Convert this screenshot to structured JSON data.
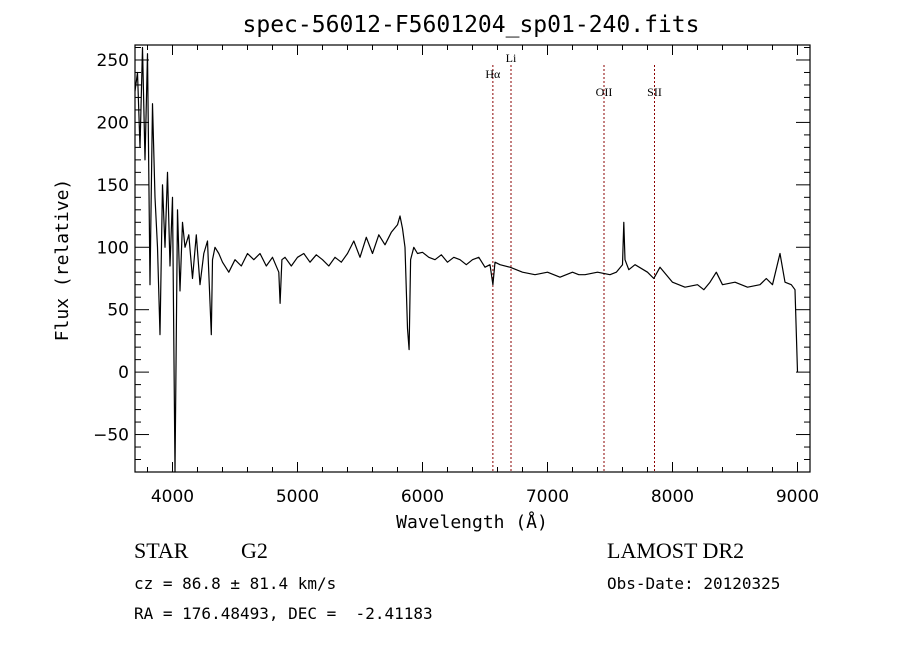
{
  "chart_data": {
    "type": "line",
    "title": "spec-56012-F5601204_sp01-240.fits",
    "xlabel": "Wavelength (Å)",
    "ylabel": "Flux (relative)",
    "xlim": [
      3700,
      9100
    ],
    "ylim": [
      -80,
      262
    ],
    "xticks": [
      4000,
      5000,
      6000,
      7000,
      8000,
      9000
    ],
    "yticks": [
      -50,
      0,
      50,
      100,
      150,
      200,
      250
    ],
    "grid": false,
    "line_color": "#000000",
    "marker_color": "#8b0000",
    "lines": [
      {
        "label": "Hα",
        "wavelength": 6563
      },
      {
        "label": "Li",
        "wavelength": 6708
      },
      {
        "label": "OII",
        "wavelength": 7452
      },
      {
        "label": "SII",
        "wavelength": 7856
      }
    ],
    "series": [
      {
        "x": [
          3700,
          3720,
          3740,
          3760,
          3780,
          3800,
          3820,
          3840,
          3860,
          3880,
          3900,
          3920,
          3940,
          3960,
          3980,
          4000,
          4020,
          4040,
          4060,
          4080,
          4100,
          4130,
          4160,
          4190,
          4220,
          4250,
          4280,
          4310,
          4320,
          4340,
          4370,
          4400,
          4450,
          4500,
          4550,
          4600,
          4650,
          4700,
          4750,
          4800,
          4850,
          4861,
          4875,
          4900,
          4950,
          5000,
          5050,
          5100,
          5150,
          5200,
          5250,
          5300,
          5350,
          5400,
          5450,
          5500,
          5550,
          5600,
          5650,
          5700,
          5750,
          5800,
          5820,
          5840,
          5860,
          5880,
          5893,
          5905,
          5930,
          5960,
          6000,
          6050,
          6100,
          6150,
          6200,
          6250,
          6300,
          6350,
          6400,
          6450,
          6500,
          6540,
          6563,
          6580,
          6620,
          6700,
          6800,
          6900,
          7000,
          7100,
          7200,
          7250,
          7300,
          7400,
          7500,
          7550,
          7600,
          7610,
          7620,
          7650,
          7700,
          7800,
          7850,
          7900,
          8000,
          8100,
          8200,
          8250,
          8300,
          8350,
          8400,
          8500,
          8600,
          8700,
          8750,
          8800,
          8860,
          8900,
          8950,
          8980,
          9000
        ],
        "y": [
          225,
          240,
          180,
          260,
          170,
          255,
          70,
          215,
          140,
          100,
          30,
          150,
          100,
          160,
          85,
          140,
          -80,
          130,
          65,
          120,
          100,
          110,
          75,
          110,
          70,
          95,
          105,
          30,
          90,
          100,
          95,
          88,
          80,
          90,
          85,
          95,
          90,
          95,
          85,
          92,
          80,
          55,
          90,
          92,
          85,
          92,
          95,
          88,
          94,
          90,
          85,
          92,
          88,
          95,
          105,
          92,
          108,
          95,
          110,
          102,
          112,
          118,
          125,
          115,
          100,
          35,
          18,
          90,
          100,
          95,
          96,
          92,
          90,
          94,
          88,
          92,
          90,
          86,
          90,
          92,
          84,
          86,
          70,
          88,
          86,
          84,
          80,
          78,
          80,
          76,
          80,
          78,
          78,
          80,
          78,
          80,
          86,
          120,
          90,
          82,
          86,
          80,
          75,
          84,
          72,
          68,
          70,
          66,
          72,
          80,
          70,
          72,
          68,
          70,
          75,
          70,
          95,
          72,
          70,
          66,
          0
        ]
      }
    ]
  },
  "info": {
    "object_class": "STAR",
    "subclass": "G2",
    "redshift": "cz = 86.8 ± 81.4 km/s",
    "coords": "RA = 176.48493, DEC =  -2.41183",
    "survey": "LAMOST DR2",
    "obs_date": "Obs-Date: 20120325"
  }
}
